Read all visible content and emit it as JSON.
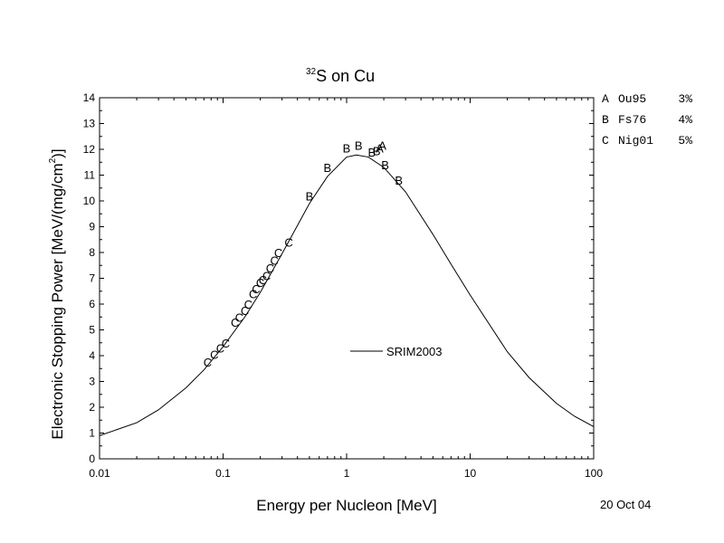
{
  "chart_data": {
    "type": "scatter",
    "title_sup": "32",
    "title_main": "S on Cu",
    "xlabel": "Energy per Nucleon [MeV]",
    "ylabel_pre": "Electronic Stopping Power [MeV/(mg/cm",
    "ylabel_sup": "2",
    "ylabel_post": ")]",
    "x_scale": "log",
    "xlim": [
      0.01,
      100
    ],
    "ylim": [
      0,
      14
    ],
    "grid": false,
    "x_tick_labels": [
      {
        "v": 0.01,
        "label": "0.01"
      },
      {
        "v": 0.1,
        "label": "0.1"
      },
      {
        "v": 1,
        "label": "1"
      },
      {
        "v": 10,
        "label": "10"
      },
      {
        "v": 100,
        "label": "100"
      }
    ],
    "y_ticks": [
      0,
      1,
      2,
      3,
      4,
      5,
      6,
      7,
      8,
      9,
      10,
      11,
      12,
      13,
      14
    ],
    "legend_position": "center-right",
    "series_line": {
      "name": "SRIM2003",
      "color": "#000000",
      "x": [
        0.01,
        0.02,
        0.03,
        0.05,
        0.07,
        0.1,
        0.15,
        0.2,
        0.3,
        0.5,
        0.7,
        1.0,
        1.2,
        1.5,
        2,
        3,
        5,
        7,
        10,
        20,
        30,
        50,
        70,
        100
      ],
      "y": [
        0.9,
        1.4,
        1.9,
        2.75,
        3.45,
        4.35,
        5.5,
        6.45,
        7.95,
        9.9,
        10.95,
        11.7,
        11.78,
        11.7,
        11.3,
        10.35,
        8.7,
        7.55,
        6.35,
        4.15,
        3.15,
        2.15,
        1.65,
        1.25
      ]
    },
    "data_letters": {
      "A": {
        "x": [
          1.85,
          1.95
        ],
        "y": [
          12.05,
          12.15
        ]
      },
      "B": {
        "x": [
          0.5,
          0.7,
          1.0,
          1.25,
          1.6,
          1.75,
          2.05,
          2.65
        ],
        "y": [
          10.2,
          11.3,
          12.05,
          12.15,
          11.9,
          11.95,
          11.4,
          10.8
        ]
      },
      "C": {
        "x": [
          0.075,
          0.085,
          0.095,
          0.105,
          0.125,
          0.135,
          0.15,
          0.16,
          0.175,
          0.185,
          0.2,
          0.21,
          0.225,
          0.24,
          0.26,
          0.28,
          0.34
        ],
        "y": [
          3.75,
          4.05,
          4.3,
          4.5,
          5.3,
          5.5,
          5.75,
          6.0,
          6.4,
          6.6,
          6.85,
          6.95,
          7.1,
          7.4,
          7.7,
          8.0,
          8.4
        ]
      }
    },
    "ref_legend": [
      {
        "letter": "A",
        "ref": "Ou95",
        "err": "3%"
      },
      {
        "letter": "B",
        "ref": "Fs76",
        "err": "4%"
      },
      {
        "letter": "C",
        "ref": "Nig01",
        "err": "5%"
      }
    ],
    "date": "20 Oct 04"
  }
}
